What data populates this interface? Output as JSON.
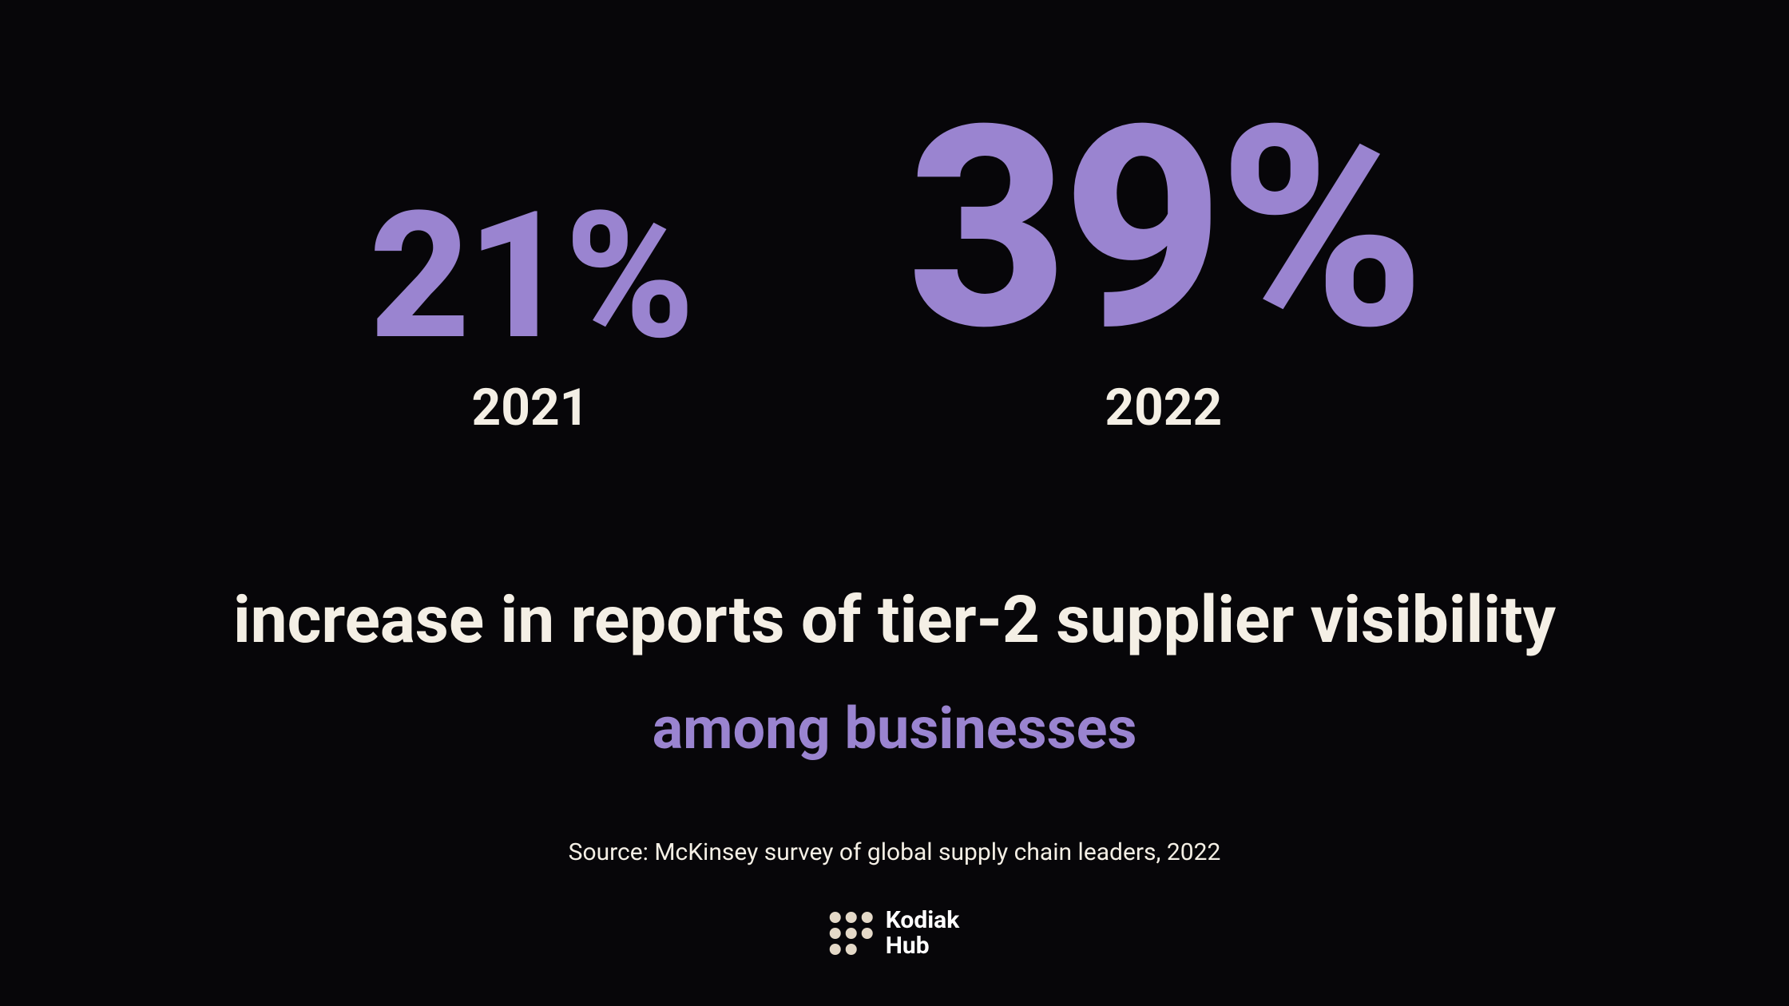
{
  "colors": {
    "background": "#070609",
    "accent": "#9A84D0",
    "text_light": "#F4EFE5",
    "logo_dot": "#E4D9C8",
    "logo_text": "#FFFFFF"
  },
  "typography": {
    "stat_value_small_fontsize": 220,
    "stat_value_large_fontsize": 350,
    "stat_year_fontsize": 64,
    "headline_fontsize": 82,
    "subline_fontsize": 72,
    "source_fontsize": 30,
    "logo_fontsize": 30
  },
  "stats": [
    {
      "value": "21%",
      "year": "2021",
      "size": "small"
    },
    {
      "value": "39%",
      "year": "2022",
      "size": "large"
    }
  ],
  "headline": "increase in reports of tier-2 supplier visibility",
  "subline": "among businesses",
  "source": "Source: McKinsey survey of global supply chain leaders, 2022",
  "logo": {
    "line1": "Kodiak",
    "line2": "Hub",
    "dot_pattern": [
      1,
      1,
      1,
      1,
      1,
      1,
      1,
      1,
      0
    ]
  }
}
